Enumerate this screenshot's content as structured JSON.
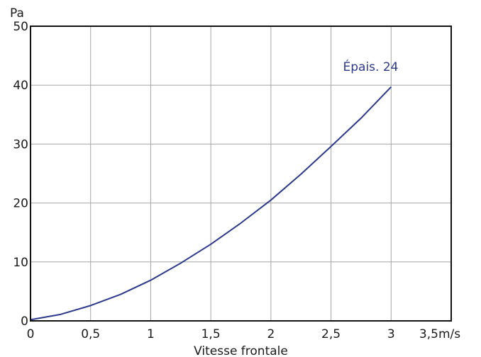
{
  "chart_data": {
    "type": "line",
    "title": "",
    "xlabel": "Vitesse frontale",
    "ylabel": "Pa",
    "xlim": [
      0,
      3.5
    ],
    "ylim": [
      0,
      50
    ],
    "x_ticks": [
      0,
      0.5,
      1,
      1.5,
      2,
      2.5,
      3,
      3.5
    ],
    "x_tick_labels": [
      "0",
      "0,5",
      "1",
      "1,5",
      "2",
      "2,5",
      "3",
      "3,5m/s"
    ],
    "y_ticks": [
      0,
      10,
      20,
      30,
      40,
      50
    ],
    "y_tick_labels": [
      "0",
      "10",
      "20",
      "30",
      "40",
      "50"
    ],
    "grid": true,
    "series": [
      {
        "name": "Épais. 24",
        "color": "#2b3a8c",
        "x": [
          0,
          0.25,
          0.5,
          0.75,
          1,
          1.25,
          1.5,
          1.75,
          2,
          2.25,
          2.5,
          2.75,
          3
        ],
        "y": [
          0.2,
          1.1,
          2.6,
          4.5,
          6.9,
          9.8,
          13.0,
          16.6,
          20.5,
          24.9,
          29.6,
          34.4,
          39.7
        ]
      }
    ]
  }
}
